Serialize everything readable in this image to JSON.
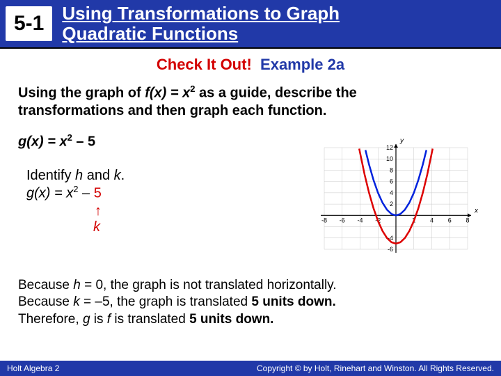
{
  "header": {
    "section": "5-1",
    "title_line1": "Using Transformations to Graph",
    "title_line2": "Quadratic Functions"
  },
  "checkit": {
    "left": "Check It Out!",
    "right": "Example 2a"
  },
  "prompt": {
    "pre": "Using the graph of ",
    "fx": "f(x) = x",
    "sup": "2",
    "post": " as a guide, describe the transformations and then graph each function."
  },
  "gx": {
    "lhs": "g(x) = x",
    "sup": "2",
    "rhs": " – 5"
  },
  "identify": {
    "line1_pre": "Identify ",
    "h": "h",
    "and": " and ",
    "k": "k",
    "dot": ".",
    "line2_lhs": "g(x) = x",
    "sup": "2",
    "line2_mid": " – ",
    "five": "5"
  },
  "arrow": "↑",
  "klabel": "k",
  "conclusion": {
    "l1_pre": "Because ",
    "l1_h": "h",
    "l1_rest": " = 0, the graph is not translated horizontally.",
    "l2_pre": "Because ",
    "l2_k": "k",
    "l2_mid": " = –5, the graph is translated ",
    "l2_bold": "5 units down.",
    "l3_pre": "Therefore, ",
    "l3_g": "g",
    "l3_mid": " is ",
    "l3_f": "f",
    "l3_mid2": " is translated ",
    "l3_bold": "5 units down."
  },
  "footer": {
    "left": "Holt Algebra 2",
    "right": "Copyright © by Holt, Rinehart and Winston. All Rights Reserved."
  },
  "chart": {
    "type": "line",
    "background_color": "#ffffff",
    "axis_color": "#000000",
    "grid_color": "#c8c8c8",
    "tick_fontsize": 9,
    "xlim": [
      -8,
      8
    ],
    "ylim": [
      -6,
      12
    ],
    "xticks": [
      -8,
      -6,
      -4,
      -2,
      2,
      4,
      6,
      8
    ],
    "yticks": [
      -6,
      -4,
      2,
      4,
      6,
      8,
      10,
      12
    ],
    "xlabel": "x",
    "ylabel": "y",
    "series": [
      {
        "name": "f",
        "color": "#0022dd",
        "width": 2.5,
        "xs": [
          -3.4,
          -3,
          -2.5,
          -2,
          -1.5,
          -1,
          -0.5,
          0,
          0.5,
          1,
          1.5,
          2,
          2.5,
          3,
          3.4
        ],
        "ys": [
          11.56,
          9,
          6.25,
          4,
          2.25,
          1,
          0.25,
          0,
          0.25,
          1,
          2.25,
          4,
          6.25,
          9,
          11.56
        ]
      },
      {
        "name": "g",
        "color": "#dd0000",
        "width": 2.5,
        "xs": [
          -4.1,
          -3.5,
          -3,
          -2.5,
          -2,
          -1.5,
          -1,
          -0.5,
          0,
          0.5,
          1,
          1.5,
          2,
          2.5,
          3,
          3.5,
          4.1
        ],
        "ys": [
          11.81,
          7.25,
          4,
          1.25,
          -1,
          -2.75,
          -4,
          -4.75,
          -5,
          -4.75,
          -4,
          -2.75,
          -1,
          1.25,
          4,
          7.25,
          11.81
        ]
      }
    ]
  }
}
